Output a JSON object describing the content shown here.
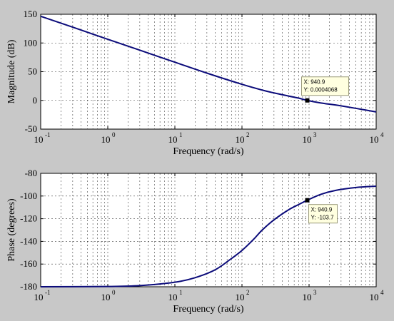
{
  "chart_data": [
    {
      "type": "line",
      "name": "magnitude",
      "ylabel": "Magnitude (dB)",
      "xlabel": "Frequency (rad/s)",
      "x_scale": "log",
      "xlim": [
        0.1,
        10000
      ],
      "ylim": [
        -50,
        150
      ],
      "y_ticks": [
        150,
        100,
        50,
        0,
        -50
      ],
      "x_ticks": [
        {
          "base": "10",
          "exp": "-1"
        },
        {
          "base": "10",
          "exp": "0"
        },
        {
          "base": "10",
          "exp": "1"
        },
        {
          "base": "10",
          "exp": "2"
        },
        {
          "base": "10",
          "exp": "3"
        },
        {
          "base": "10",
          "exp": "4"
        }
      ],
      "grid": true,
      "color": "#0b0b7a",
      "series": [
        {
          "x": [
            0.1,
            0.3,
            1,
            3,
            10,
            30,
            100,
            200,
            300,
            500,
            700,
            940.9,
            1500,
            3000,
            10000
          ],
          "values": [
            146.5,
            127.5,
            106.5,
            87.5,
            66.5,
            47.5,
            28,
            18,
            13,
            7.5,
            4,
            0.0004068,
            -4.5,
            -9.5,
            -20
          ]
        }
      ],
      "datatip": {
        "x_text": "X: 940.9",
        "y_text": "Y: 0.0004068",
        "x": 940.9,
        "y": 0.0004068
      }
    },
    {
      "type": "line",
      "name": "phase",
      "ylabel": "Phase (degrees)",
      "xlabel": "Frequency (rad/s)",
      "x_scale": "log",
      "xlim": [
        0.1,
        10000
      ],
      "ylim": [
        -180,
        -80
      ],
      "y_ticks": [
        -80,
        -100,
        -120,
        -140,
        -160,
        -180
      ],
      "x_ticks": [
        {
          "base": "10",
          "exp": "-1"
        },
        {
          "base": "10",
          "exp": "0"
        },
        {
          "base": "10",
          "exp": "1"
        },
        {
          "base": "10",
          "exp": "2"
        },
        {
          "base": "10",
          "exp": "3"
        },
        {
          "base": "10",
          "exp": "4"
        }
      ],
      "grid": true,
      "color": "#0b0b7a",
      "series": [
        {
          "x": [
            0.1,
            1,
            3,
            10,
            20,
            40,
            70,
            100,
            150,
            200,
            300,
            500,
            700,
            940.9,
            1500,
            2500,
            5000,
            10000
          ],
          "values": [
            -180,
            -179.8,
            -179,
            -176,
            -172,
            -165,
            -155,
            -148,
            -138,
            -130,
            -121,
            -112,
            -107.5,
            -103.7,
            -98.5,
            -95,
            -92.5,
            -91.3
          ]
        }
      ],
      "datatip": {
        "x_text": "X: 940.9",
        "y_text": "Y: -103.7",
        "x": 940.9,
        "y": -103.7
      }
    }
  ]
}
